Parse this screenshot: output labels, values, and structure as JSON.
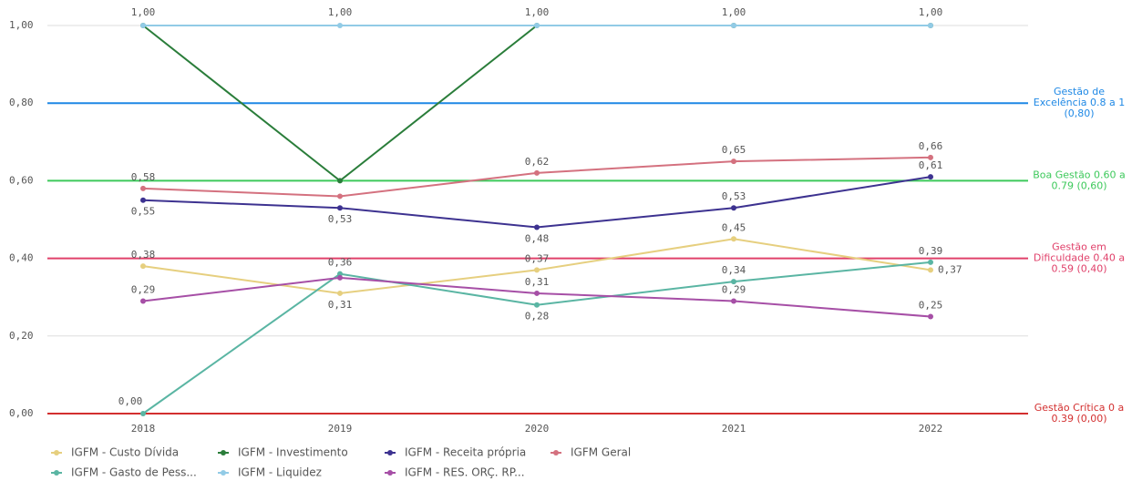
{
  "chart_data": {
    "type": "line",
    "categories": [
      "2018",
      "2019",
      "2020",
      "2021",
      "2022"
    ],
    "ylim": [
      0,
      1
    ],
    "yticks": [
      {
        "value": 0,
        "label": "0,00"
      },
      {
        "value": 0.2,
        "label": "0,20"
      },
      {
        "value": 0.4,
        "label": "0,40"
      },
      {
        "value": 0.6,
        "label": "0,60"
      },
      {
        "value": 0.8,
        "label": "0,80"
      },
      {
        "value": 1,
        "label": "1,00"
      }
    ],
    "grid": true,
    "series": [
      {
        "name": "IGFM - Custo Dívida",
        "color": "#e6cf7f",
        "values": [
          0.38,
          0.31,
          0.37,
          0.45,
          0.37
        ],
        "value_labels": [
          "0,38",
          "0,31",
          "0,37",
          "0,45",
          "0,37"
        ]
      },
      {
        "name": "IGFM - Investimento",
        "color": "#2a7d3a",
        "values": [
          1,
          0.6,
          1,
          1,
          1
        ]
      },
      {
        "name": "IGFM - Receita própria",
        "color": "#3d3290",
        "values": [
          0.55,
          0.53,
          0.48,
          0.53,
          0.61
        ],
        "value_labels": [
          "0,55",
          "0,53",
          "0,48",
          "0,53",
          "0,61"
        ]
      },
      {
        "name": "IGFM Geral",
        "color": "#d4717f",
        "values": [
          0.58,
          0.56,
          0.62,
          0.65,
          0.66
        ],
        "value_labels": [
          "0,58",
          null,
          "0,62",
          "0,65",
          "0,66"
        ]
      },
      {
        "name": "IGFM - Gasto de Pess...",
        "color": "#5ab5a3",
        "values": [
          0,
          0.36,
          0.28,
          0.34,
          0.39
        ],
        "value_labels": [
          "0,00",
          "0,36",
          "0,28",
          "0,34",
          "0,39"
        ]
      },
      {
        "name": "IGFM - Liquidez",
        "color": "#92cbe6",
        "values": [
          1,
          1,
          1,
          1,
          1
        ],
        "value_labels": [
          "1,00",
          "1,00",
          "1,00",
          "1,00",
          "1,00"
        ]
      },
      {
        "name": "IGFM - RES. ORÇ. RP...",
        "color": "#a64fa6",
        "values": [
          0.29,
          0.35,
          0.31,
          0.29,
          0.25
        ],
        "value_labels": [
          "0,29",
          null,
          "0,31",
          "0,29",
          "0,25"
        ]
      }
    ],
    "reference_lines": [
      {
        "value": 0.8,
        "color": "#1e88e5",
        "label": [
          "Gestão de",
          "Excelência 0.8 a 1",
          "(0,80)"
        ]
      },
      {
        "value": 0.6,
        "color": "#3dc95b",
        "label": [
          "Boa Gestão 0.60 a",
          "0.79 (0,60)"
        ]
      },
      {
        "value": 0.4,
        "color": "#e0406a",
        "label": [
          "Gestão em",
          "Dificuldade 0.40 a",
          "0.59 (0,40)"
        ]
      },
      {
        "value": 0,
        "color": "#d32f2f",
        "label": [
          "Gestão Crítica 0 a",
          "0.39 (0,00)"
        ]
      }
    ]
  }
}
